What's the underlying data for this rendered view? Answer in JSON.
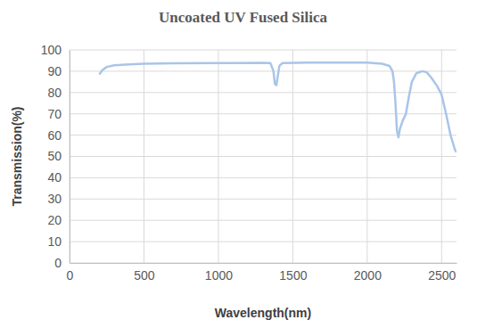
{
  "chart_data": {
    "type": "line",
    "title": "Uncoated UV Fused Silica",
    "x_label": "Wavelength(nm)",
    "y_label": "Transmission(%)",
    "x": [
      200,
      220,
      250,
      300,
      400,
      500,
      700,
      1000,
      1300,
      1350,
      1370,
      1380,
      1390,
      1400,
      1410,
      1430,
      1600,
      1800,
      2000,
      2100,
      2150,
      2170,
      2180,
      2190,
      2200,
      2210,
      2220,
      2240,
      2260,
      2280,
      2300,
      2330,
      2370,
      2400,
      2430,
      2470,
      2500,
      2530,
      2560,
      2590,
      2600
    ],
    "values": [
      88.5,
      90.5,
      92,
      92.8,
      93.2,
      93.5,
      93.7,
      93.8,
      93.9,
      93.8,
      90,
      84,
      83.5,
      88,
      92.5,
      93.8,
      94,
      94,
      94,
      93.5,
      92.5,
      90,
      85,
      75,
      62,
      59,
      63,
      67,
      70,
      78,
      85,
      89,
      90,
      89.5,
      87,
      83,
      79,
      70,
      60,
      53,
      52
    ],
    "color": "#a9c5e8",
    "xlim": [
      0,
      2600
    ],
    "xticks": [
      0,
      500,
      1000,
      1500,
      2000,
      2500
    ],
    "ylim": [
      0,
      100
    ],
    "yticks": [
      0,
      10,
      20,
      30,
      40,
      50,
      60,
      70,
      80,
      90,
      100
    ],
    "grid": true
  }
}
